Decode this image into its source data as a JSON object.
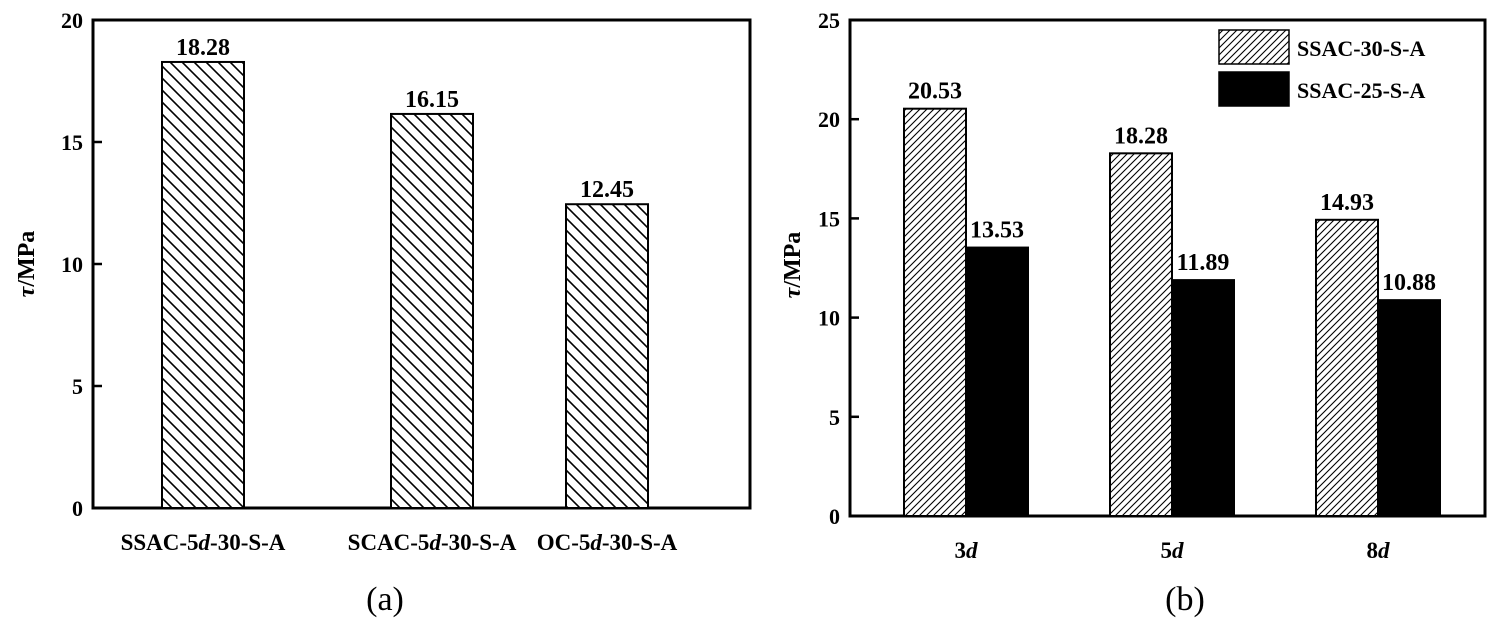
{
  "chart_data": [
    {
      "type": "bar",
      "panel_label": "(a)",
      "ylabel": "τ/MPa",
      "ylabel_symbol": "τ",
      "ylabel_unit": "/MPa",
      "ylim": [
        0,
        20
      ],
      "yticks": [
        0,
        5,
        10,
        15,
        20
      ],
      "categories": [
        {
          "pre": "SSAC-5",
          "ital": "d",
          "post": "-30-S-A"
        },
        {
          "pre": "SCAC-5",
          "ital": "d",
          "post": "-30-S-A"
        },
        {
          "pre": "OC-5",
          "ital": "d",
          "post": "-30-S-A"
        }
      ],
      "values": [
        18.28,
        16.15,
        12.45
      ],
      "data_labels": [
        "18.28",
        "16.15",
        "12.45"
      ],
      "bar_fill": "hatch-back"
    },
    {
      "type": "bar",
      "panel_label": "(b)",
      "ylabel": "τ/MPa",
      "ylabel_symbol": "τ",
      "ylabel_unit": "/MPa",
      "ylim": [
        0,
        25
      ],
      "yticks": [
        0,
        5,
        10,
        15,
        20,
        25
      ],
      "categories": [
        {
          "pre": "3",
          "ital": "d",
          "post": ""
        },
        {
          "pre": "5",
          "ital": "d",
          "post": ""
        },
        {
          "pre": "8",
          "ital": "d",
          "post": ""
        }
      ],
      "legend_position": "top-right",
      "series": [
        {
          "name": "SSAC-30-S-A",
          "values": [
            20.53,
            18.28,
            14.93
          ],
          "data_labels": [
            "20.53",
            "18.28",
            "14.93"
          ],
          "fill": "hatch-fwd"
        },
        {
          "name": "SSAC-25-S-A",
          "values": [
            13.53,
            11.89,
            10.88
          ],
          "data_labels": [
            "13.53",
            "11.89",
            "10.88"
          ],
          "fill": "#000000"
        }
      ]
    }
  ]
}
